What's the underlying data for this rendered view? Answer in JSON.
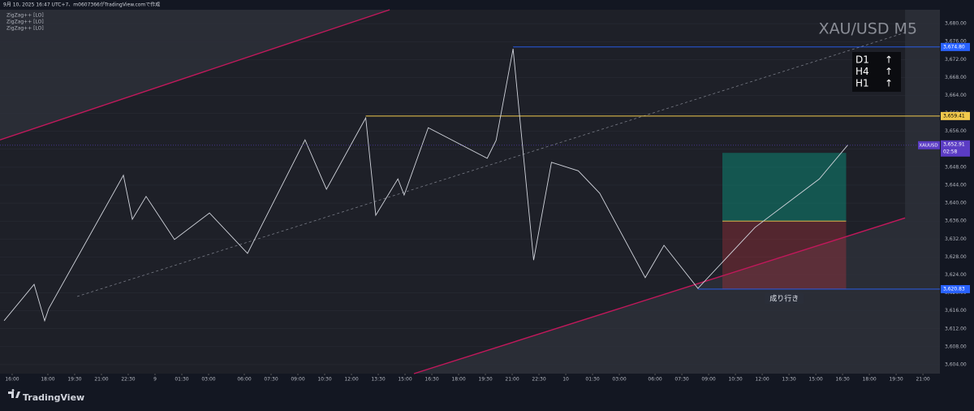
{
  "header": "9月 10, 2025 16:47 UTC+7、m0607366がTradingView.comで作成",
  "brand": "TradingView",
  "chart_data": {
    "type": "line",
    "title": "XAU/USD M5",
    "legend": [
      "ZigZag++ [LO]",
      "ZigZag++ [LO]",
      "ZigZag++ [LO]"
    ],
    "timeframes": [
      {
        "label": "D1",
        "arrow": "↑"
      },
      {
        "label": "H4",
        "arrow": "↑"
      },
      {
        "label": "H1",
        "arrow": "↑"
      }
    ],
    "xlim": [
      -0.68,
      51.95
    ],
    "ylim": [
      3602,
      3683.1
    ],
    "xticks": [
      {
        "value": 0,
        "label": "16:00"
      },
      {
        "value": 2,
        "label": "18:00"
      },
      {
        "value": 3.5,
        "label": "19:30"
      },
      {
        "value": 5,
        "label": "21:00"
      },
      {
        "value": 6.5,
        "label": "22:30"
      },
      {
        "value": 8,
        "label": "9"
      },
      {
        "value": 9.5,
        "label": "01:30"
      },
      {
        "value": 11,
        "label": "03:00"
      },
      {
        "value": 13,
        "label": "06:00"
      },
      {
        "value": 14.5,
        "label": "07:30"
      },
      {
        "value": 16,
        "label": "09:00"
      },
      {
        "value": 17.5,
        "label": "10:30"
      },
      {
        "value": 19,
        "label": "12:00"
      },
      {
        "value": 20.5,
        "label": "13:30"
      },
      {
        "value": 22,
        "label": "15:00"
      },
      {
        "value": 23.5,
        "label": "16:30"
      },
      {
        "value": 25,
        "label": "18:00"
      },
      {
        "value": 26.5,
        "label": "19:30"
      },
      {
        "value": 28,
        "label": "21:00"
      },
      {
        "value": 29.5,
        "label": "22:30"
      },
      {
        "value": 31,
        "label": "10"
      },
      {
        "value": 32.5,
        "label": "01:30"
      },
      {
        "value": 34,
        "label": "03:00"
      },
      {
        "value": 36,
        "label": "06:00"
      },
      {
        "value": 37.5,
        "label": "07:30"
      },
      {
        "value": 39,
        "label": "09:00"
      },
      {
        "value": 40.5,
        "label": "10:30"
      },
      {
        "value": 42,
        "label": "12:00"
      },
      {
        "value": 43.5,
        "label": "13:30"
      },
      {
        "value": 45,
        "label": "15:00"
      },
      {
        "value": 46.5,
        "label": "16:30"
      },
      {
        "value": 48,
        "label": "18:00"
      },
      {
        "value": 49.5,
        "label": "19:30"
      },
      {
        "value": 51,
        "label": "21:00"
      }
    ],
    "yticks": [
      {
        "value": 3604,
        "label": "3,604.00"
      },
      {
        "value": 3608,
        "label": "3,608.00"
      },
      {
        "value": 3612,
        "label": "3,612.00"
      },
      {
        "value": 3616,
        "label": "3,616.00"
      },
      {
        "value": 3620,
        "label": "3,620.00"
      },
      {
        "value": 3624,
        "label": "3,624.00"
      },
      {
        "value": 3628,
        "label": "3,628.00"
      },
      {
        "value": 3632,
        "label": "3,632.00"
      },
      {
        "value": 3636,
        "label": "3,636.00"
      },
      {
        "value": 3640,
        "label": "3,640.00"
      },
      {
        "value": 3644,
        "label": "3,644.00"
      },
      {
        "value": 3648,
        "label": "3,648.00"
      },
      {
        "value": 3652,
        "label": "3,652.00"
      },
      {
        "value": 3656,
        "label": "3,656.00"
      },
      {
        "value": 3660,
        "label": "3,660.00"
      },
      {
        "value": 3664,
        "label": "3,664.00"
      },
      {
        "value": 3668,
        "label": "3,668.00"
      },
      {
        "value": 3672,
        "label": "3,672.00"
      },
      {
        "value": 3676,
        "label": "3,676.00"
      },
      {
        "value": 3680,
        "label": "3,680.00"
      }
    ],
    "series": [
      {
        "color": "#d1d4dc",
        "x": [
          -0.45,
          1.23,
          1.82,
          2.05,
          6.23,
          6.73,
          7.5,
          9.09,
          11.05,
          13.18,
          16.4,
          17.6,
          19.8,
          20.36,
          21.6,
          21.95,
          23.3,
          26.6,
          27.1,
          28.05,
          29.2,
          30.2,
          31.7,
          32.9,
          35.45,
          36.5,
          38.4,
          41.6,
          45.2,
          46.8
        ],
        "values": [
          3613.8,
          3621.9,
          3613.8,
          3616.5,
          3646.2,
          3636.4,
          3641.5,
          3631.9,
          3637.8,
          3628.8,
          3654.1,
          3643.1,
          3659.0,
          3637.3,
          3645.4,
          3641.8,
          3656.8,
          3650.0,
          3654.0,
          3674.4,
          3627.3,
          3649.1,
          3647.2,
          3642.2,
          3623.4,
          3630.6,
          3621.0,
          3634.6,
          3645.4,
          3653.0
        ]
      }
    ],
    "trendlines": [
      {
        "color": "#c2185b",
        "x": [
          -0.68,
          21.14
        ],
        "y": [
          3654.1,
          3683.1
        ]
      },
      {
        "color": "#c2185b",
        "x": [
          22.5,
          50.0
        ],
        "y": [
          3602.0,
          3636.7
        ]
      },
      {
        "color": "#787b86",
        "x": [
          3.64,
          50.0
        ],
        "y": [
          3619.2,
          3678.0
        ]
      }
    ],
    "levels": [
      {
        "value": 3674.8,
        "label": "3,674.80",
        "color": "#2962ff",
        "x": 28.05
      },
      {
        "value": 3659.41,
        "label": "3,659.41",
        "color": "#f2c94c",
        "x": 19.8
      },
      {
        "value": 3620.83,
        "label": "3,620.83",
        "color": "#2962ff",
        "x": 38.4
      }
    ],
    "last_price": {
      "value": 3652.91,
      "label": "3,652.91",
      "symbol": "XAUUSD",
      "countdown": "02:58",
      "color": "#5b3cc4"
    },
    "position": {
      "x": [
        39.77,
        46.7
      ],
      "target": 3651.2,
      "entry": 3636.0,
      "stop": 3620.83,
      "label": "成り行き"
    }
  }
}
